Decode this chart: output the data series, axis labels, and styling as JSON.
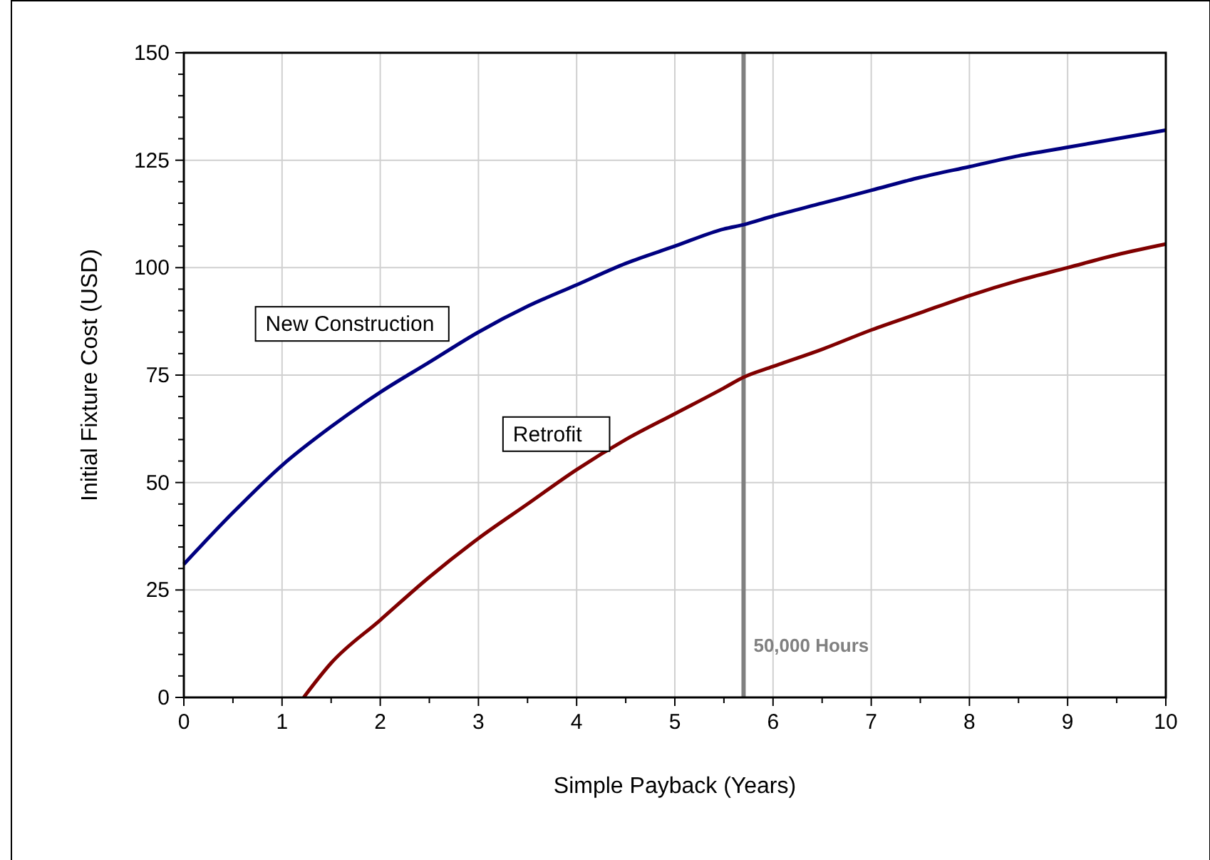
{
  "chart_data": {
    "type": "line",
    "xlabel": "Simple Payback (Years)",
    "ylabel": "Initial Fixture Cost (USD)",
    "xlim": [
      0,
      10
    ],
    "ylim": [
      0,
      150
    ],
    "xticks": [
      0,
      {
        "value": 0.5,
        "label": null
      },
      1,
      {
        "value": 1.5,
        "label": null
      },
      2,
      {
        "value": 2.5,
        "label": null
      },
      3,
      {
        "value": 3.5,
        "label": null
      },
      4,
      {
        "value": 4.5,
        "label": null
      },
      5,
      {
        "value": 5.5,
        "label": null
      },
      6,
      {
        "value": 6.5,
        "label": null
      },
      7,
      {
        "value": 7.5,
        "label": null
      },
      8,
      {
        "value": 8.5,
        "label": null
      },
      9,
      {
        "value": 9.5,
        "label": null
      },
      10
    ],
    "yticks": [
      0,
      {
        "value": 5,
        "label": null
      },
      {
        "value": 10,
        "label": null
      },
      {
        "value": 15,
        "label": null
      },
      {
        "value": 20,
        "label": null
      },
      25,
      {
        "value": 30,
        "label": null
      },
      {
        "value": 35,
        "label": null
      },
      {
        "value": 40,
        "label": null
      },
      {
        "value": 45,
        "label": null
      },
      50,
      {
        "value": 55,
        "label": null
      },
      {
        "value": 60,
        "label": null
      },
      {
        "value": 65,
        "label": null
      },
      {
        "value": 70,
        "label": null
      },
      75,
      {
        "value": 80,
        "label": null
      },
      {
        "value": 85,
        "label": null
      },
      {
        "value": 90,
        "label": null
      },
      {
        "value": 95,
        "label": null
      },
      100,
      {
        "value": 105,
        "label": null
      },
      {
        "value": 110,
        "label": null
      },
      {
        "value": 115,
        "label": null
      },
      {
        "value": 120,
        "label": null
      },
      125,
      {
        "value": 130,
        "label": null
      },
      {
        "value": 135,
        "label": null
      },
      {
        "value": 140,
        "label": null
      },
      {
        "value": 145,
        "label": null
      },
      150
    ],
    "grid": true,
    "legend": false,
    "line_style": "solid",
    "series": [
      {
        "name": "New Construction",
        "color": "#000080",
        "x": [
          0,
          0.5,
          1,
          1.5,
          2,
          2.5,
          3,
          3.5,
          4,
          4.5,
          5,
          5.5,
          5.7,
          6,
          6.5,
          7,
          7.5,
          8,
          8.5,
          9,
          9.5,
          10
        ],
        "values": [
          31,
          43,
          54,
          63,
          71,
          78,
          85,
          91,
          96,
          101,
          105,
          109,
          110,
          112,
          115,
          118,
          121,
          123.5,
          126,
          128,
          130,
          132
        ]
      },
      {
        "name": "Retrofit",
        "color": "#800000",
        "x": [
          1.22,
          1.5,
          2,
          2.5,
          3,
          3.5,
          4,
          4.5,
          5,
          5.5,
          5.7,
          6,
          6.5,
          7,
          7.5,
          8,
          8.5,
          9,
          9.5,
          10
        ],
        "values": [
          0,
          8,
          18,
          28,
          37,
          45,
          53,
          60,
          66,
          72,
          74.5,
          77,
          81,
          85.5,
          89.5,
          93.5,
          97,
          100,
          103,
          105.5
        ]
      }
    ],
    "ref_lines": [
      {
        "axis": "x",
        "value": 5.7,
        "label": "50,000 Hours",
        "color": "#808080"
      }
    ]
  }
}
